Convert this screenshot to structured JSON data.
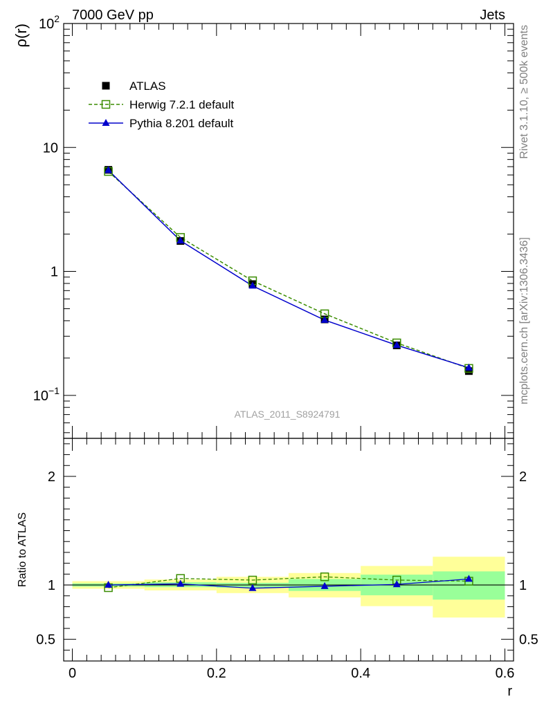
{
  "chart_data": [
    {
      "type": "line",
      "panel": "main",
      "header_left": "7000 GeV pp",
      "header_right": "Jets",
      "ylabel": "ρ(r)",
      "ylog": true,
      "ylim": [
        0.045,
        100
      ],
      "xlim": [
        -0.012,
        0.612
      ],
      "yticks": [
        {
          "value": 100,
          "base": "10",
          "exp": "2"
        },
        {
          "value": 10,
          "base": "10",
          "exp": ""
        },
        {
          "value": 1,
          "base": "1",
          "exp": ""
        },
        {
          "value": 0.1,
          "base": "10",
          "exp": "−1"
        }
      ],
      "analysis_label": "ATLAS_2011_S8924791",
      "x": [
        0.05,
        0.15,
        0.25,
        0.35,
        0.45,
        0.55
      ],
      "series": [
        {
          "name": "ATLAS",
          "marker": "square-filled",
          "color": "#000000",
          "values": [
            6.6,
            1.76,
            0.79,
            0.41,
            0.253,
            0.157
          ]
        },
        {
          "name": "Herwig 7.2.1 default",
          "marker": "square-open",
          "line": "dashed",
          "color": "#3a8c00",
          "values": [
            6.4,
            1.88,
            0.84,
            0.455,
            0.265,
            0.165
          ]
        },
        {
          "name": "Pythia 8.201 default",
          "marker": "triangle",
          "line": "solid",
          "color": "#0000cc",
          "values": [
            6.55,
            1.77,
            0.765,
            0.405,
            0.254,
            0.167
          ]
        }
      ]
    },
    {
      "type": "line",
      "panel": "ratio",
      "ylabel": "Ratio to ATLAS",
      "xlabel": "r",
      "ylim": [
        0.3,
        2.35
      ],
      "xlim": [
        -0.012,
        0.612
      ],
      "yticks": [
        {
          "value": 0.5,
          "label": "0.5"
        },
        {
          "value": 1,
          "label": "1"
        },
        {
          "value": 2,
          "label": "2"
        }
      ],
      "xticks": [
        {
          "value": 0,
          "label": "0"
        },
        {
          "value": 0.2,
          "label": "0.2"
        },
        {
          "value": 0.4,
          "label": "0.4"
        },
        {
          "value": 0.6,
          "label": "0.6"
        }
      ],
      "bands": [
        {
          "x0": 0.0,
          "x1": 0.1,
          "outer": [
            0.965,
            1.035
          ],
          "inner": [
            0.985,
            1.015
          ]
        },
        {
          "x0": 0.1,
          "x1": 0.2,
          "outer": [
            0.95,
            1.05
          ],
          "inner": [
            0.98,
            1.025
          ]
        },
        {
          "x0": 0.2,
          "x1": 0.3,
          "outer": [
            0.925,
            1.075
          ],
          "inner": [
            0.975,
            1.02
          ]
        },
        {
          "x0": 0.3,
          "x1": 0.4,
          "outer": [
            0.885,
            1.11
          ],
          "inner": [
            0.945,
            1.055
          ]
        },
        {
          "x0": 0.4,
          "x1": 0.5,
          "outer": [
            0.805,
            1.175
          ],
          "inner": [
            0.905,
            1.095
          ]
        },
        {
          "x0": 0.5,
          "x1": 0.6,
          "outer": [
            0.7,
            1.26
          ],
          "inner": [
            0.865,
            1.125
          ]
        }
      ],
      "band_colors": {
        "outer": "#ffff99",
        "inner": "#99ff99"
      },
      "x": [
        0.05,
        0.15,
        0.25,
        0.35,
        0.45,
        0.55
      ],
      "series": [
        {
          "name": "Herwig 7.2.1 default",
          "marker": "square-open",
          "line": "dashed",
          "color": "#3a8c00",
          "values": [
            0.975,
            1.06,
            1.045,
            1.075,
            1.045,
            1.035
          ],
          "errors": [
            0,
            0,
            0,
            0,
            0,
            0
          ]
        },
        {
          "name": "Pythia 8.201 default",
          "marker": "triangle",
          "line": "solid",
          "color": "#0000cc",
          "values": [
            1.0,
            1.01,
            0.97,
            0.988,
            1.005,
            1.055
          ],
          "errors": [
            0.004,
            0.004,
            0.008,
            0.015,
            0.012,
            0.01
          ]
        }
      ]
    }
  ],
  "side_labels": {
    "rivet": "Rivet 3.1.10, ≥ 500k events",
    "mcplots": "mcplots.cern.ch [arXiv:1306.3436]"
  }
}
